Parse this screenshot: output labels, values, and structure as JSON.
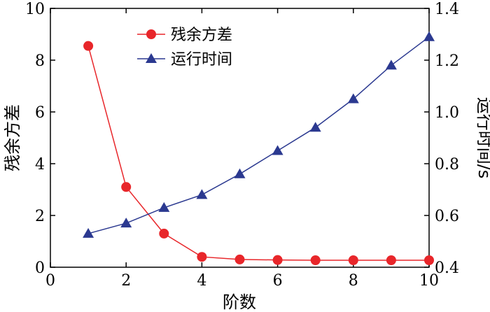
{
  "chart_data": {
    "type": "line",
    "x": [
      1,
      2,
      3,
      4,
      5,
      6,
      7,
      8,
      9,
      10
    ],
    "xlabel": "阶数",
    "ylabel_left": "残余方差",
    "ylabel_right": "运行时间/s",
    "xlim": [
      0,
      10
    ],
    "ylim_left": [
      0,
      10
    ],
    "ylim_right": [
      0.4,
      1.4
    ],
    "x_ticks": [
      "0",
      "2",
      "4",
      "6",
      "8",
      "10"
    ],
    "y_left_ticks": [
      "0",
      "2",
      "4",
      "6",
      "8",
      "10"
    ],
    "y_right_ticks": [
      "0.4",
      "0.6",
      "0.8",
      "1.0",
      "1.2",
      "1.4"
    ],
    "grid": false,
    "legend_position": "top-center",
    "series": [
      {
        "name": "残余方差",
        "axis": "left",
        "marker": "circle",
        "color": "#e8262a",
        "values": [
          8.55,
          3.1,
          1.3,
          0.4,
          0.3,
          0.28,
          0.27,
          0.27,
          0.27,
          0.27
        ]
      },
      {
        "name": "运行时间",
        "axis": "right",
        "marker": "triangle",
        "color": "#2b3990",
        "values": [
          0.53,
          0.57,
          0.63,
          0.68,
          0.76,
          0.85,
          0.94,
          1.05,
          1.18,
          1.29
        ]
      }
    ]
  }
}
